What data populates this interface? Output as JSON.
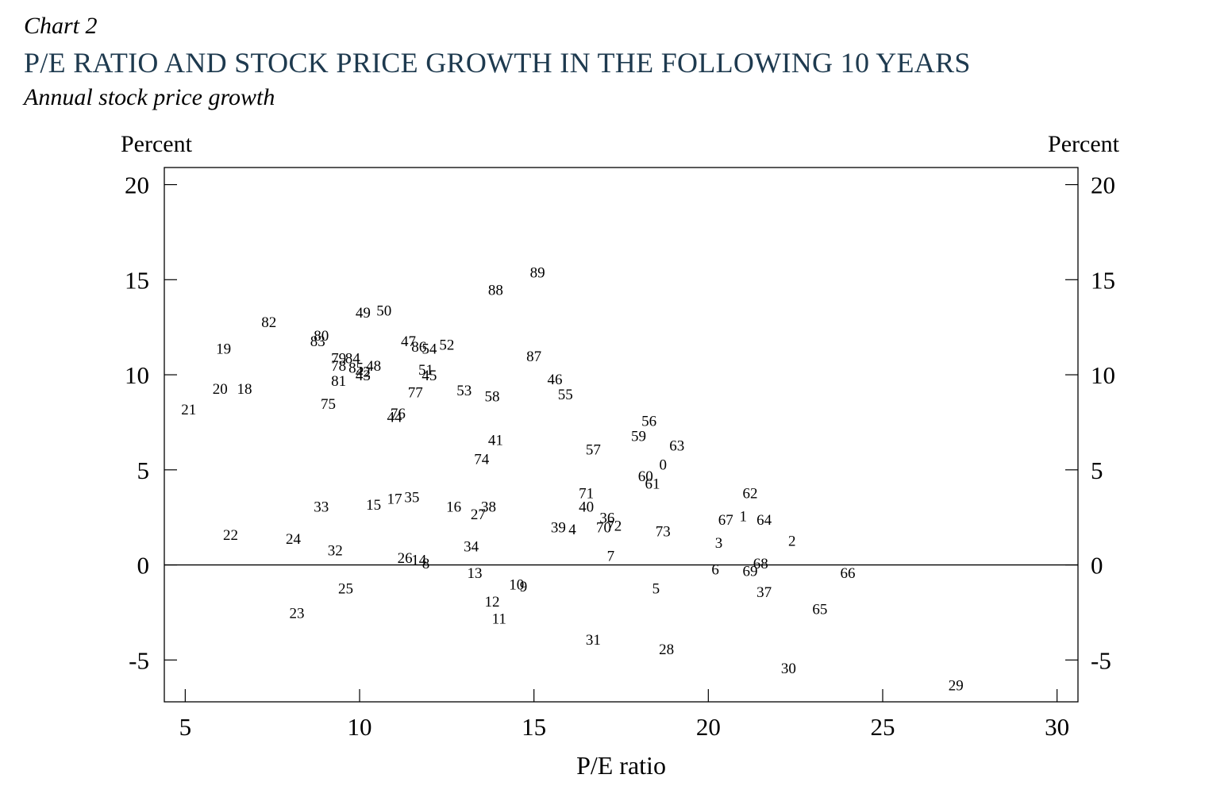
{
  "header": {
    "label": "Chart 2",
    "title": "P/E RATIO AND STOCK PRICE GROWTH IN THE FOLLOWING 10 YEARS",
    "subtitle": "Annual stock price growth"
  },
  "colors": {
    "title": "#1e3a4f",
    "text": "#000000",
    "axis": "#000000"
  },
  "chart_data": {
    "type": "scatter",
    "point_style": "text-labels",
    "xlabel": "P/E ratio",
    "ylabel_left": "Percent",
    "ylabel_right": "Percent",
    "xlim": [
      4.4,
      30.6
    ],
    "ylim": [
      -7.2,
      20.9
    ],
    "xticks": [
      5,
      10,
      15,
      20,
      25,
      30
    ],
    "yticks": [
      -5,
      0,
      5,
      10,
      15,
      20
    ],
    "ytick_labels": [
      "-5",
      "0",
      "5",
      "10",
      "15",
      "20"
    ],
    "zero_line": true,
    "grid": false,
    "points": [
      {
        "label": "0",
        "x": 18.7,
        "y": 5.3
      },
      {
        "label": "1",
        "x": 21.0,
        "y": 2.6
      },
      {
        "label": "2",
        "x": 22.4,
        "y": 1.3
      },
      {
        "label": "3",
        "x": 20.3,
        "y": 1.2
      },
      {
        "label": "4",
        "x": 16.1,
        "y": 1.9
      },
      {
        "label": "5",
        "x": 18.5,
        "y": -1.2
      },
      {
        "label": "6",
        "x": 20.2,
        "y": -0.2
      },
      {
        "label": "7",
        "x": 17.2,
        "y": 0.5
      },
      {
        "label": "8",
        "x": 11.9,
        "y": 0.1
      },
      {
        "label": "9",
        "x": 14.7,
        "y": -1.1
      },
      {
        "label": "10",
        "x": 14.5,
        "y": -1.0
      },
      {
        "label": "11",
        "x": 14.0,
        "y": -2.8
      },
      {
        "label": "12",
        "x": 13.8,
        "y": -1.9
      },
      {
        "label": "13",
        "x": 13.3,
        "y": -0.4
      },
      {
        "label": "14",
        "x": 11.7,
        "y": 0.3
      },
      {
        "label": "15",
        "x": 10.4,
        "y": 3.2
      },
      {
        "label": "16",
        "x": 12.7,
        "y": 3.1
      },
      {
        "label": "17",
        "x": 11.0,
        "y": 3.5
      },
      {
        "label": "18",
        "x": 6.7,
        "y": 9.3
      },
      {
        "label": "19",
        "x": 6.1,
        "y": 11.4
      },
      {
        "label": "20",
        "x": 6.0,
        "y": 9.3
      },
      {
        "label": "21",
        "x": 5.1,
        "y": 8.2
      },
      {
        "label": "22",
        "x": 6.3,
        "y": 1.6
      },
      {
        "label": "23",
        "x": 8.2,
        "y": -2.5
      },
      {
        "label": "24",
        "x": 8.1,
        "y": 1.4
      },
      {
        "label": "25",
        "x": 9.6,
        "y": -1.2
      },
      {
        "label": "26",
        "x": 11.3,
        "y": 0.4
      },
      {
        "label": "27",
        "x": 13.4,
        "y": 2.7
      },
      {
        "label": "28",
        "x": 18.8,
        "y": -4.4
      },
      {
        "label": "29",
        "x": 27.1,
        "y": -6.3
      },
      {
        "label": "30",
        "x": 22.3,
        "y": -5.4
      },
      {
        "label": "31",
        "x": 16.7,
        "y": -3.9
      },
      {
        "label": "32",
        "x": 9.3,
        "y": 0.8
      },
      {
        "label": "33",
        "x": 8.9,
        "y": 3.1
      },
      {
        "label": "34",
        "x": 13.2,
        "y": 1.0
      },
      {
        "label": "35",
        "x": 11.5,
        "y": 3.6
      },
      {
        "label": "36",
        "x": 17.1,
        "y": 2.5
      },
      {
        "label": "37",
        "x": 21.6,
        "y": -1.4
      },
      {
        "label": "38",
        "x": 13.7,
        "y": 3.1
      },
      {
        "label": "39",
        "x": 15.7,
        "y": 2.0
      },
      {
        "label": "40",
        "x": 16.5,
        "y": 3.1
      },
      {
        "label": "41",
        "x": 13.9,
        "y": 6.6
      },
      {
        "label": "42",
        "x": 10.1,
        "y": 10.2
      },
      {
        "label": "43",
        "x": 10.1,
        "y": 10.0
      },
      {
        "label": "44",
        "x": 11.0,
        "y": 7.8
      },
      {
        "label": "45",
        "x": 12.0,
        "y": 10.0
      },
      {
        "label": "46",
        "x": 15.6,
        "y": 9.8
      },
      {
        "label": "47",
        "x": 11.4,
        "y": 11.8
      },
      {
        "label": "48",
        "x": 10.4,
        "y": 10.5
      },
      {
        "label": "49",
        "x": 10.1,
        "y": 13.3
      },
      {
        "label": "50",
        "x": 10.7,
        "y": 13.4
      },
      {
        "label": "51",
        "x": 11.9,
        "y": 10.3
      },
      {
        "label": "52",
        "x": 12.5,
        "y": 11.6
      },
      {
        "label": "53",
        "x": 13.0,
        "y": 9.2
      },
      {
        "label": "54",
        "x": 12.0,
        "y": 11.4
      },
      {
        "label": "55",
        "x": 15.9,
        "y": 9.0
      },
      {
        "label": "56",
        "x": 18.3,
        "y": 7.6
      },
      {
        "label": "57",
        "x": 16.7,
        "y": 6.1
      },
      {
        "label": "58",
        "x": 13.8,
        "y": 8.9
      },
      {
        "label": "59",
        "x": 18.0,
        "y": 6.8
      },
      {
        "label": "60",
        "x": 18.2,
        "y": 4.7
      },
      {
        "label": "61",
        "x": 18.4,
        "y": 4.3
      },
      {
        "label": "62",
        "x": 21.2,
        "y": 3.8
      },
      {
        "label": "63",
        "x": 19.1,
        "y": 6.3
      },
      {
        "label": "64",
        "x": 21.6,
        "y": 2.4
      },
      {
        "label": "65",
        "x": 23.2,
        "y": -2.3
      },
      {
        "label": "66",
        "x": 24.0,
        "y": -0.4
      },
      {
        "label": "67",
        "x": 20.5,
        "y": 2.4
      },
      {
        "label": "68",
        "x": 21.5,
        "y": 0.1
      },
      {
        "label": "69",
        "x": 21.2,
        "y": -0.3
      },
      {
        "label": "70",
        "x": 17.0,
        "y": 2.0
      },
      {
        "label": "71",
        "x": 16.5,
        "y": 3.8
      },
      {
        "label": "72",
        "x": 17.3,
        "y": 2.1
      },
      {
        "label": "73",
        "x": 18.7,
        "y": 1.8
      },
      {
        "label": "74",
        "x": 13.5,
        "y": 5.6
      },
      {
        "label": "75",
        "x": 9.1,
        "y": 8.5
      },
      {
        "label": "76",
        "x": 11.1,
        "y": 8.0
      },
      {
        "label": "77",
        "x": 11.6,
        "y": 9.1
      },
      {
        "label": "78",
        "x": 9.4,
        "y": 10.5
      },
      {
        "label": "79",
        "x": 9.4,
        "y": 10.9
      },
      {
        "label": "80",
        "x": 8.9,
        "y": 12.1
      },
      {
        "label": "81",
        "x": 9.4,
        "y": 9.7
      },
      {
        "label": "82",
        "x": 7.4,
        "y": 12.8
      },
      {
        "label": "83",
        "x": 8.8,
        "y": 11.8
      },
      {
        "label": "84",
        "x": 9.8,
        "y": 10.9
      },
      {
        "label": "85",
        "x": 9.9,
        "y": 10.4
      },
      {
        "label": "86",
        "x": 11.7,
        "y": 11.5
      },
      {
        "label": "87",
        "x": 15.0,
        "y": 11.0
      },
      {
        "label": "88",
        "x": 13.9,
        "y": 14.5
      },
      {
        "label": "89",
        "x": 15.1,
        "y": 15.4
      }
    ]
  }
}
